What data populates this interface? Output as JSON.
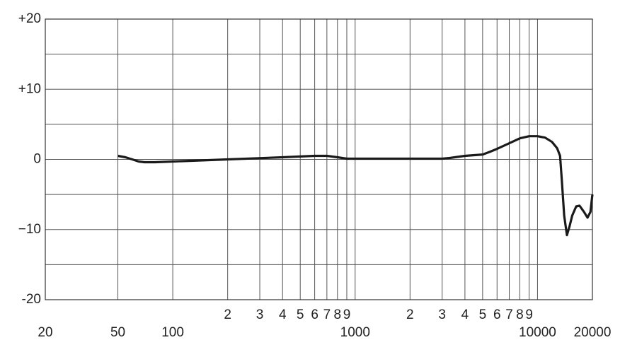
{
  "chart_data": {
    "type": "line",
    "xscale": "log",
    "grid": true,
    "xlim": [
      20,
      20000
    ],
    "ylim": [
      -20,
      20
    ],
    "xticks": [
      20,
      50,
      100,
      {
        "value": 200,
        "label": "2"
      },
      {
        "value": 300,
        "label": "3"
      },
      {
        "value": 400,
        "label": "4"
      },
      {
        "value": 500,
        "label": "5"
      },
      {
        "value": 600,
        "label": "6"
      },
      {
        "value": 700,
        "label": "7"
      },
      {
        "value": 800,
        "label": "8"
      },
      {
        "value": 900,
        "label": "9"
      },
      1000,
      {
        "value": 2000,
        "label": "2"
      },
      {
        "value": 3000,
        "label": "3"
      },
      {
        "value": 4000,
        "label": "4"
      },
      {
        "value": 5000,
        "label": "5"
      },
      {
        "value": 6000,
        "label": "6"
      },
      {
        "value": 7000,
        "label": "7"
      },
      {
        "value": 8000,
        "label": "8"
      },
      {
        "value": 9000,
        "label": "9"
      },
      10000,
      20000
    ],
    "yticks": [
      {
        "value": 20,
        "label": "+20"
      },
      {
        "value": 10,
        "label": "+10"
      },
      0,
      {
        "value": -10,
        "label": "−10"
      },
      {
        "value": -20,
        "label": "-20"
      }
    ],
    "yminor_ticks": [
      15,
      5,
      -5,
      -15
    ],
    "series": [
      {
        "color": "#1a1a1a",
        "x": [
          50,
          55,
          60,
          65,
          70,
          80,
          100,
          200,
          400,
          600,
          700,
          800,
          900,
          1000,
          2000,
          3000,
          3300,
          4000,
          5000,
          5500,
          6000,
          7000,
          8000,
          9000,
          10000,
          11000,
          12000,
          12800,
          13300,
          13600,
          14000,
          14500,
          15000,
          15500,
          16300,
          17000,
          18000,
          18800,
          19500,
          20000
        ],
        "values": [
          0.5,
          0.3,
          0.0,
          -0.3,
          -0.4,
          -0.4,
          -0.3,
          0.0,
          0.3,
          0.5,
          0.5,
          0.3,
          0.1,
          0.1,
          0.1,
          0.1,
          0.2,
          0.5,
          0.7,
          1.1,
          1.5,
          2.3,
          3.0,
          3.3,
          3.3,
          3.1,
          2.5,
          1.6,
          0.5,
          -3,
          -8,
          -10.8,
          -9.5,
          -8,
          -6.7,
          -6.6,
          -7.5,
          -8.3,
          -7.5,
          -5
        ]
      }
    ]
  }
}
